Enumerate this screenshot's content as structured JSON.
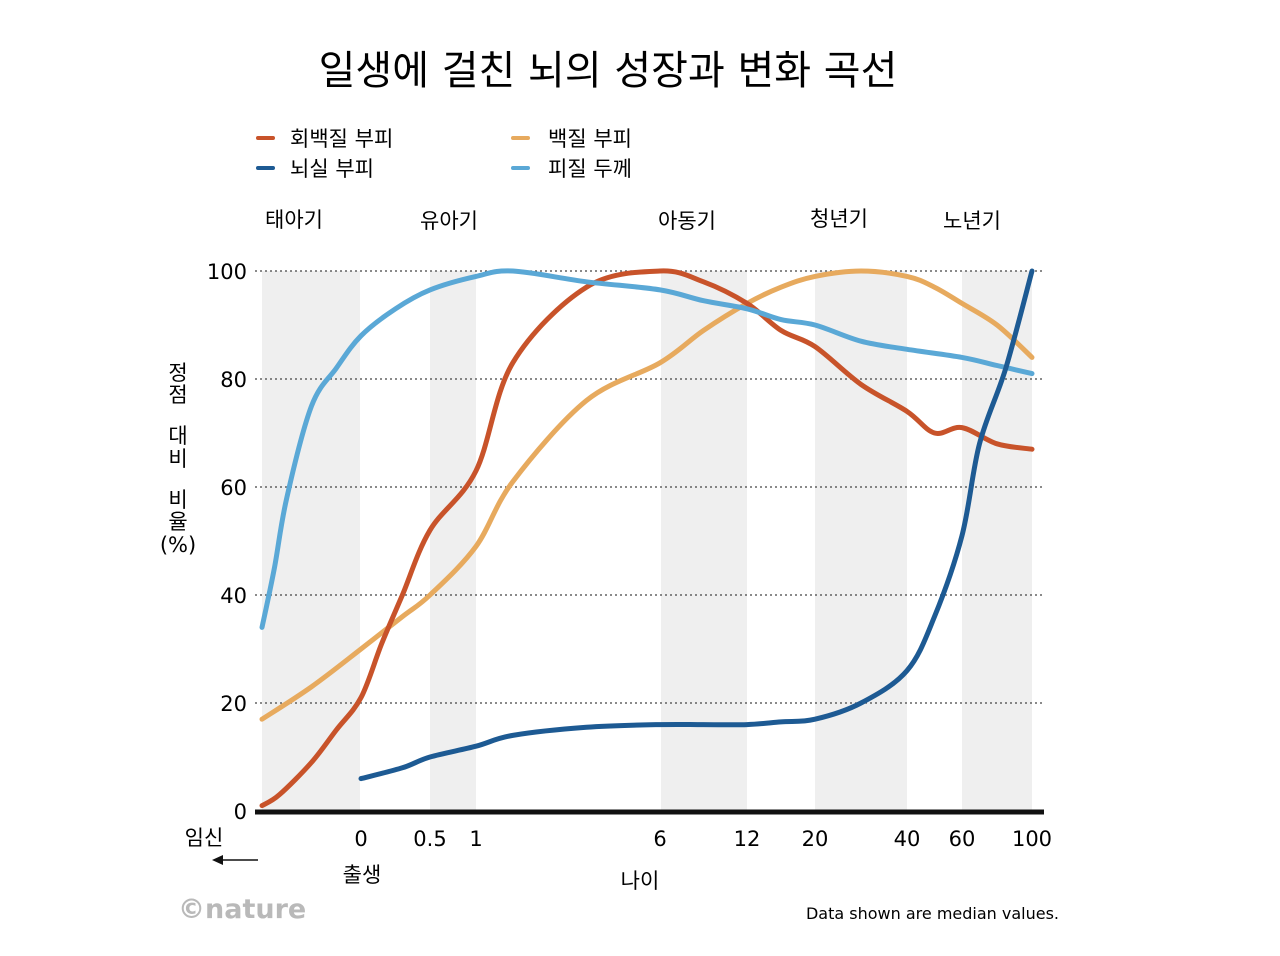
{
  "chart_data": {
    "type": "line",
    "title": "일생에 걸친 뇌의 성장과 변화 곡선",
    "ylabel": "정점 대비 비율 (%)",
    "xlabel": "나이",
    "ylim": [
      0,
      100
    ],
    "yticks": [
      "0",
      "20",
      "40",
      "60",
      "80",
      "100"
    ],
    "x_scale": "age-segmented (prenatal, log-like postnatal)",
    "xticks": [
      {
        "label": "0",
        "x": 0
      },
      {
        "label": "0.5",
        "x": 0.5
      },
      {
        "label": "1",
        "x": 1
      },
      {
        "label": "6",
        "x": 6
      },
      {
        "label": "12",
        "x": 12
      },
      {
        "label": "20",
        "x": 20
      },
      {
        "label": "40",
        "x": 40
      },
      {
        "label": "60",
        "x": 60
      },
      {
        "label": "100",
        "x": 100
      }
    ],
    "prenatal_label": "임신",
    "birth_label": "출생",
    "stages": [
      "태아기",
      "유아기",
      "아동기",
      "청년기",
      "노년기"
    ],
    "note": "Data shown are median values.",
    "credit": "©nature",
    "series": [
      {
        "name": "회백질 부피",
        "color": "#c8532a",
        "points": [
          [
            -0.4,
            1
          ],
          [
            -0.33,
            3
          ],
          [
            -0.2,
            9
          ],
          [
            -0.1,
            15
          ],
          [
            0,
            21
          ],
          [
            0.15,
            31
          ],
          [
            0.3,
            40
          ],
          [
            0.5,
            52
          ],
          [
            1,
            63
          ],
          [
            2,
            83
          ],
          [
            4,
            97
          ],
          [
            6,
            100
          ],
          [
            9,
            98
          ],
          [
            12,
            94
          ],
          [
            16,
            89
          ],
          [
            20,
            86
          ],
          [
            30,
            79
          ],
          [
            40,
            74
          ],
          [
            50,
            70
          ],
          [
            60,
            71
          ],
          [
            80,
            68
          ],
          [
            100,
            67
          ]
        ]
      },
      {
        "name": "뇌실 부피",
        "color": "#1d5a93",
        "points": [
          [
            0,
            6
          ],
          [
            0.3,
            8
          ],
          [
            0.5,
            10
          ],
          [
            1,
            12
          ],
          [
            2,
            14
          ],
          [
            4,
            15.5
          ],
          [
            6,
            16
          ],
          [
            9,
            16
          ],
          [
            12,
            16
          ],
          [
            16,
            16.5
          ],
          [
            20,
            17
          ],
          [
            30,
            20
          ],
          [
            40,
            26
          ],
          [
            50,
            36
          ],
          [
            60,
            51
          ],
          [
            70,
            68
          ],
          [
            85,
            82
          ],
          [
            100,
            100
          ]
        ]
      },
      {
        "name": "백질 부피",
        "color": "#e7aa5e",
        "points": [
          [
            -0.4,
            17
          ],
          [
            -0.2,
            23
          ],
          [
            0,
            30
          ],
          [
            0.3,
            36
          ],
          [
            0.5,
            40
          ],
          [
            1,
            49
          ],
          [
            2,
            61
          ],
          [
            4,
            76
          ],
          [
            6,
            83
          ],
          [
            9,
            89
          ],
          [
            12,
            94
          ],
          [
            16,
            97
          ],
          [
            20,
            99
          ],
          [
            30,
            100
          ],
          [
            40,
            99
          ],
          [
            50,
            97
          ],
          [
            60,
            94
          ],
          [
            80,
            90
          ],
          [
            100,
            84
          ]
        ]
      },
      {
        "name": "피질 두께",
        "color": "#5aa8d6",
        "points": [
          [
            -0.4,
            34
          ],
          [
            -0.35,
            45
          ],
          [
            -0.3,
            58
          ],
          [
            -0.2,
            75
          ],
          [
            -0.1,
            82
          ],
          [
            0,
            88
          ],
          [
            0.25,
            93
          ],
          [
            0.5,
            96.5
          ],
          [
            1,
            99
          ],
          [
            2,
            100
          ],
          [
            4,
            98
          ],
          [
            6,
            96.5
          ],
          [
            9,
            94.5
          ],
          [
            12,
            93
          ],
          [
            16,
            91
          ],
          [
            20,
            90
          ],
          [
            30,
            87
          ],
          [
            40,
            85.5
          ],
          [
            60,
            84
          ],
          [
            80,
            82.5
          ],
          [
            100,
            81
          ]
        ]
      }
    ]
  }
}
